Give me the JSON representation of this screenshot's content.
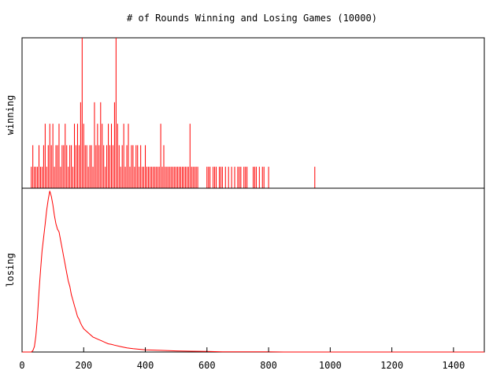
{
  "chart_data": {
    "type": "line",
    "title": "# of Rounds Winning and Losing Games (10000)",
    "xlim": [
      0,
      1500
    ],
    "x_ticks": [
      {
        "value": 0,
        "label": "0"
      },
      {
        "value": 200,
        "label": "200"
      },
      {
        "value": 400,
        "label": "400"
      },
      {
        "value": 600,
        "label": "600"
      },
      {
        "value": 800,
        "label": "800"
      },
      {
        "value": 1000,
        "label": "1000"
      },
      {
        "value": 1200,
        "label": "1200"
      },
      {
        "value": 1400,
        "label": "1400"
      }
    ],
    "grid": false,
    "legend": "none",
    "panels": [
      {
        "ylabel": "winning",
        "ylim": [
          0,
          7
        ],
        "series": [
          {
            "color": "#ff0000",
            "spikes": [
              [
                30,
                1
              ],
              [
                35,
                2
              ],
              [
                40,
                1
              ],
              [
                45,
                1
              ],
              [
                50,
                1
              ],
              [
                55,
                2
              ],
              [
                60,
                1
              ],
              [
                65,
                1
              ],
              [
                70,
                2
              ],
              [
                75,
                3
              ],
              [
                80,
                1
              ],
              [
                85,
                2
              ],
              [
                90,
                3
              ],
              [
                95,
                2
              ],
              [
                100,
                3
              ],
              [
                105,
                1
              ],
              [
                110,
                2
              ],
              [
                115,
                2
              ],
              [
                120,
                3
              ],
              [
                125,
                1
              ],
              [
                130,
                2
              ],
              [
                135,
                2
              ],
              [
                140,
                3
              ],
              [
                145,
                2
              ],
              [
                150,
                1
              ],
              [
                155,
                2
              ],
              [
                160,
                2
              ],
              [
                165,
                1
              ],
              [
                170,
                3
              ],
              [
                175,
                2
              ],
              [
                180,
                3
              ],
              [
                185,
                2
              ],
              [
                190,
                4
              ],
              [
                195,
                7
              ],
              [
                200,
                3
              ],
              [
                205,
                2
              ],
              [
                210,
                2
              ],
              [
                215,
                1
              ],
              [
                220,
                2
              ],
              [
                225,
                2
              ],
              [
                230,
                1
              ],
              [
                235,
                4
              ],
              [
                240,
                2
              ],
              [
                245,
                3
              ],
              [
                250,
                2
              ],
              [
                255,
                4
              ],
              [
                260,
                3
              ],
              [
                265,
                2
              ],
              [
                270,
                1
              ],
              [
                275,
                2
              ],
              [
                280,
                3
              ],
              [
                285,
                2
              ],
              [
                290,
                3
              ],
              [
                295,
                2
              ],
              [
                300,
                4
              ],
              [
                305,
                7
              ],
              [
                310,
                3
              ],
              [
                315,
                2
              ],
              [
                320,
                1
              ],
              [
                325,
                2
              ],
              [
                330,
                3
              ],
              [
                335,
                1
              ],
              [
                340,
                2
              ],
              [
                345,
                3
              ],
              [
                350,
                1
              ],
              [
                355,
                2
              ],
              [
                360,
                2
              ],
              [
                365,
                1
              ],
              [
                370,
                2
              ],
              [
                375,
                2
              ],
              [
                380,
                1
              ],
              [
                385,
                2
              ],
              [
                390,
                1
              ],
              [
                395,
                1
              ],
              [
                400,
                2
              ],
              [
                405,
                1
              ],
              [
                410,
                1
              ],
              [
                415,
                1
              ],
              [
                420,
                1
              ],
              [
                425,
                1
              ],
              [
                430,
                1
              ],
              [
                435,
                1
              ],
              [
                440,
                1
              ],
              [
                445,
                1
              ],
              [
                450,
                3
              ],
              [
                455,
                1
              ],
              [
                460,
                2
              ],
              [
                465,
                1
              ],
              [
                470,
                1
              ],
              [
                475,
                1
              ],
              [
                480,
                1
              ],
              [
                485,
                1
              ],
              [
                490,
                1
              ],
              [
                495,
                1
              ],
              [
                500,
                1
              ],
              [
                505,
                1
              ],
              [
                510,
                1
              ],
              [
                515,
                1
              ],
              [
                520,
                1
              ],
              [
                525,
                1
              ],
              [
                530,
                1
              ],
              [
                535,
                1
              ],
              [
                540,
                1
              ],
              [
                545,
                3
              ],
              [
                550,
                1
              ],
              [
                555,
                1
              ],
              [
                560,
                1
              ],
              [
                565,
                1
              ],
              [
                570,
                1
              ],
              [
                600,
                1
              ],
              [
                605,
                1
              ],
              [
                610,
                1
              ],
              [
                620,
                1
              ],
              [
                625,
                1
              ],
              [
                630,
                1
              ],
              [
                640,
                1
              ],
              [
                645,
                1
              ],
              [
                650,
                1
              ],
              [
                660,
                1
              ],
              [
                670,
                1
              ],
              [
                680,
                1
              ],
              [
                690,
                1
              ],
              [
                700,
                1
              ],
              [
                705,
                1
              ],
              [
                710,
                1
              ],
              [
                720,
                1
              ],
              [
                725,
                1
              ],
              [
                730,
                1
              ],
              [
                750,
                1
              ],
              [
                755,
                1
              ],
              [
                760,
                1
              ],
              [
                770,
                1
              ],
              [
                780,
                1
              ],
              [
                785,
                1
              ],
              [
                800,
                1
              ],
              [
                950,
                1
              ]
            ]
          }
        ]
      },
      {
        "ylabel": "losing",
        "ylim": [
          0,
          600
        ],
        "series": [
          {
            "color": "#ff0000",
            "points": [
              [
                0,
                0
              ],
              [
                30,
                0
              ],
              [
                35,
                5
              ],
              [
                40,
                20
              ],
              [
                45,
                60
              ],
              [
                50,
                130
              ],
              [
                55,
                220
              ],
              [
                60,
                300
              ],
              [
                65,
                370
              ],
              [
                70,
                420
              ],
              [
                75,
                470
              ],
              [
                80,
                520
              ],
              [
                85,
                560
              ],
              [
                90,
                590
              ],
              [
                95,
                570
              ],
              [
                100,
                540
              ],
              [
                105,
                500
              ],
              [
                110,
                470
              ],
              [
                115,
                450
              ],
              [
                120,
                440
              ],
              [
                125,
                410
              ],
              [
                130,
                380
              ],
              [
                135,
                350
              ],
              [
                140,
                320
              ],
              [
                145,
                290
              ],
              [
                150,
                260
              ],
              [
                155,
                240
              ],
              [
                160,
                210
              ],
              [
                165,
                190
              ],
              [
                170,
                170
              ],
              [
                175,
                150
              ],
              [
                180,
                130
              ],
              [
                185,
                120
              ],
              [
                190,
                105
              ],
              [
                195,
                95
              ],
              [
                200,
                85
              ],
              [
                210,
                75
              ],
              [
                220,
                65
              ],
              [
                230,
                55
              ],
              [
                240,
                50
              ],
              [
                250,
                45
              ],
              [
                260,
                40
              ],
              [
                270,
                35
              ],
              [
                280,
                30
              ],
              [
                290,
                28
              ],
              [
                300,
                25
              ],
              [
                320,
                20
              ],
              [
                340,
                15
              ],
              [
                360,
                12
              ],
              [
                380,
                10
              ],
              [
                400,
                8
              ],
              [
                450,
                6
              ],
              [
                500,
                4
              ],
              [
                550,
                3
              ],
              [
                600,
                2
              ],
              [
                650,
                1
              ],
              [
                700,
                1
              ],
              [
                750,
                1
              ],
              [
                800,
                1
              ],
              [
                850,
                0
              ],
              [
                900,
                0
              ],
              [
                1500,
                0
              ]
            ]
          }
        ]
      }
    ]
  }
}
